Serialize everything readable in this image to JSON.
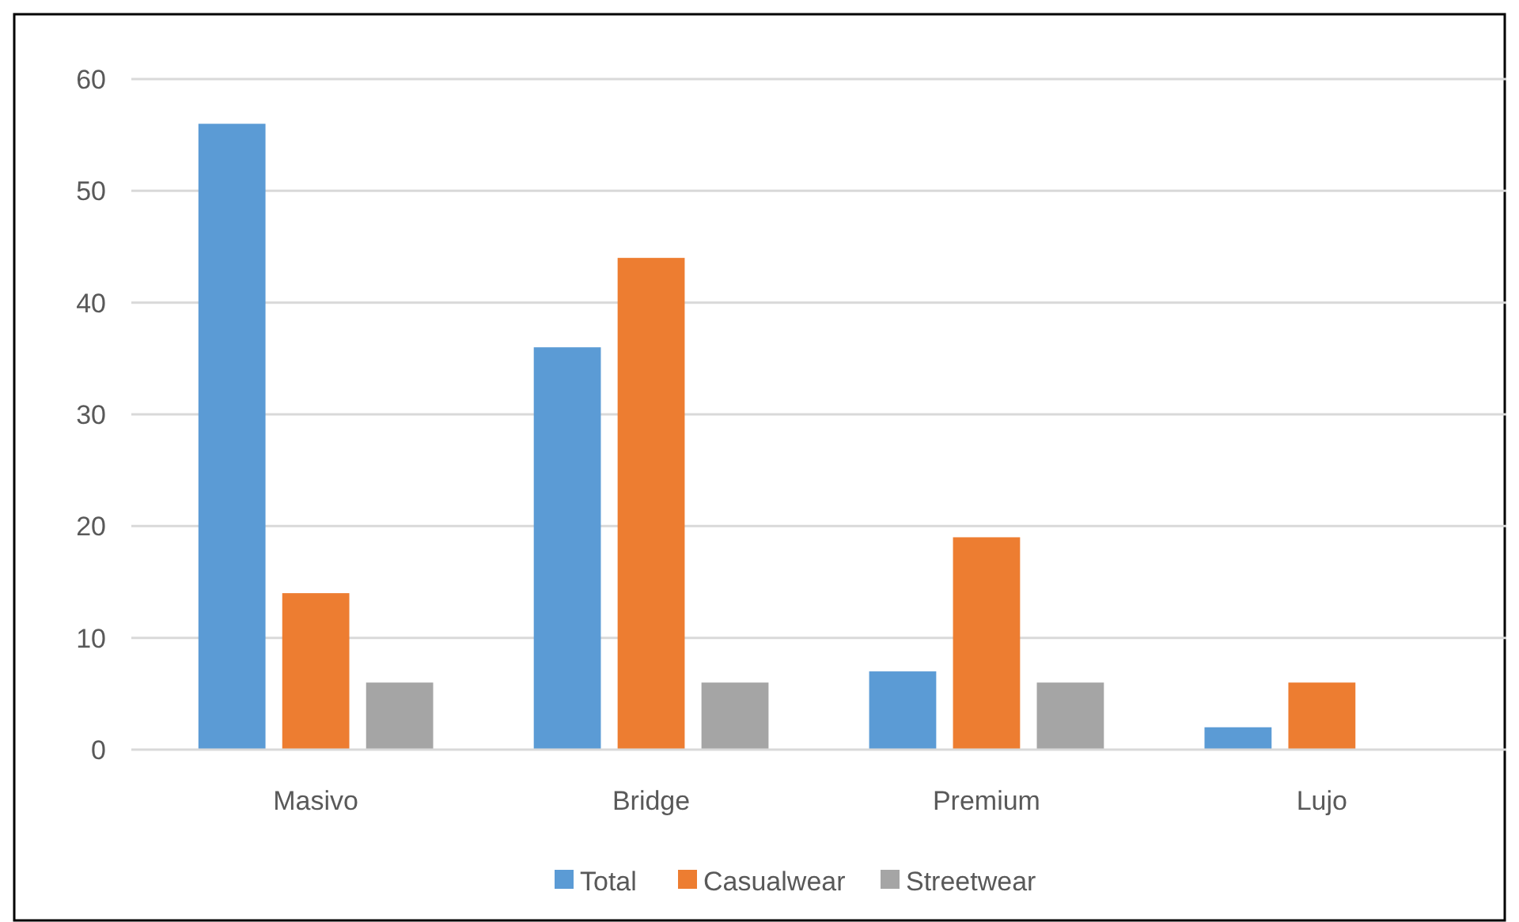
{
  "chart_data": {
    "type": "bar",
    "categories": [
      "Masivo",
      "Bridge",
      "Premium",
      "Lujo"
    ],
    "series": [
      {
        "name": "Total",
        "color": "#5b9bd5",
        "values": [
          56,
          36,
          7,
          2
        ]
      },
      {
        "name": "Casualwear",
        "color": "#ed7d31",
        "values": [
          14,
          44,
          19,
          6
        ]
      },
      {
        "name": "Streetwear",
        "color": "#a5a5a5",
        "values": [
          6,
          6,
          6,
          null
        ]
      }
    ],
    "ylim": [
      0,
      60
    ],
    "yticks": [
      0,
      10,
      20,
      30,
      40,
      50,
      60
    ],
    "grid": "y",
    "legend": "bottom"
  }
}
